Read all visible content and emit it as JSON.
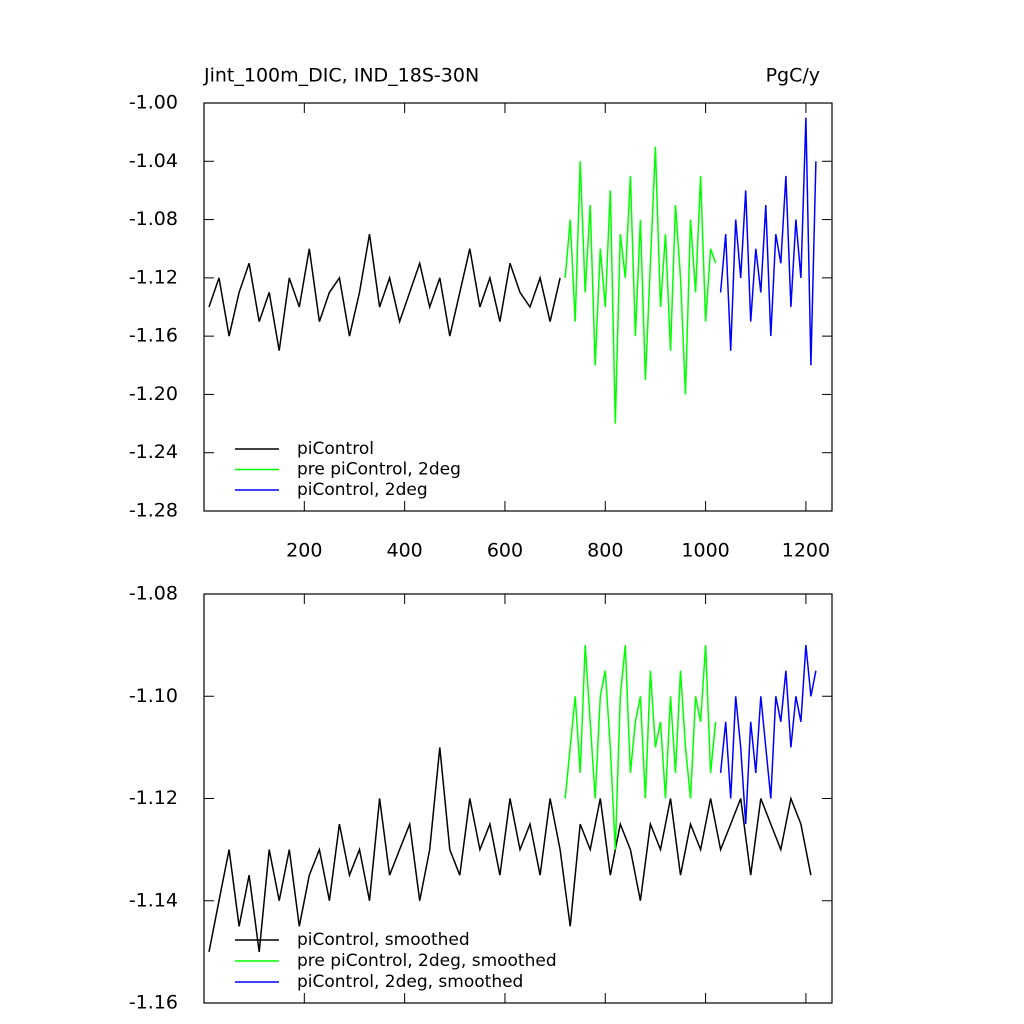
{
  "chart_data": [
    {
      "type": "line",
      "title": "Jint_100m_DIC, IND_18S-30N",
      "units": "PgC/y",
      "xlim": [
        0,
        1252
      ],
      "xticks": [
        200,
        400,
        600,
        800,
        1000,
        1200
      ],
      "ylim": [
        -1.28,
        -1.0
      ],
      "yticks": [
        {
          "value": -1.28,
          "label": "-1.28"
        },
        -1.24,
        {
          "value": -1.2,
          "label": "-1.20"
        },
        -1.16,
        -1.12,
        -1.08,
        -1.04,
        {
          "value": -1.0,
          "label": "-1.00"
        }
      ],
      "series": [
        {
          "name": "piControl",
          "color": "#000000",
          "x": [
            10,
            30,
            50,
            70,
            90,
            110,
            130,
            150,
            170,
            190,
            210,
            230,
            250,
            270,
            290,
            310,
            330,
            350,
            370,
            390,
            410,
            430,
            450,
            470,
            490,
            510,
            530,
            550,
            570,
            590,
            610,
            630,
            650,
            670,
            690,
            710
          ],
          "values": [
            -1.14,
            -1.12,
            -1.16,
            -1.13,
            -1.11,
            -1.15,
            -1.13,
            -1.17,
            -1.12,
            -1.14,
            -1.1,
            -1.15,
            -1.13,
            -1.12,
            -1.16,
            -1.13,
            -1.09,
            -1.14,
            -1.12,
            -1.15,
            -1.13,
            -1.11,
            -1.14,
            -1.12,
            -1.16,
            -1.13,
            -1.1,
            -1.14,
            -1.12,
            -1.15,
            -1.11,
            -1.13,
            -1.14,
            -1.12,
            -1.15,
            -1.12
          ]
        },
        {
          "name": "pre piControl, 2deg",
          "color": "#00ff00",
          "x": [
            720,
            730,
            740,
            750,
            760,
            770,
            780,
            790,
            800,
            810,
            820,
            830,
            840,
            850,
            860,
            870,
            880,
            890,
            900,
            910,
            920,
            930,
            940,
            950,
            960,
            970,
            980,
            990,
            1000,
            1010,
            1020
          ],
          "values": [
            -1.12,
            -1.08,
            -1.15,
            -1.04,
            -1.13,
            -1.07,
            -1.18,
            -1.1,
            -1.14,
            -1.06,
            -1.22,
            -1.09,
            -1.12,
            -1.05,
            -1.16,
            -1.08,
            -1.19,
            -1.11,
            -1.03,
            -1.14,
            -1.09,
            -1.17,
            -1.07,
            -1.12,
            -1.2,
            -1.08,
            -1.13,
            -1.05,
            -1.15,
            -1.1,
            -1.11
          ]
        },
        {
          "name": "piControl, 2deg",
          "color": "#0000ff",
          "x": [
            1030,
            1040,
            1050,
            1060,
            1070,
            1080,
            1090,
            1100,
            1110,
            1120,
            1130,
            1140,
            1150,
            1160,
            1170,
            1180,
            1190,
            1200,
            1210,
            1220
          ],
          "values": [
            -1.13,
            -1.09,
            -1.17,
            -1.08,
            -1.12,
            -1.06,
            -1.15,
            -1.1,
            -1.13,
            -1.07,
            -1.16,
            -1.09,
            -1.11,
            -1.05,
            -1.14,
            -1.08,
            -1.12,
            -1.01,
            -1.18,
            -1.04
          ]
        }
      ]
    },
    {
      "type": "line",
      "xlim": [
        0,
        1252
      ],
      "xticks": [
        200,
        400,
        600,
        800,
        1000,
        1200
      ],
      "ylim": [
        -1.16,
        -1.08
      ],
      "yticks": [
        -1.16,
        -1.14,
        -1.12,
        {
          "value": -1.1,
          "label": "-1.10"
        },
        -1.08
      ],
      "series": [
        {
          "name": "piControl, smoothed",
          "color": "#000000",
          "x": [
            10,
            30,
            50,
            70,
            90,
            110,
            130,
            150,
            170,
            190,
            210,
            230,
            250,
            270,
            290,
            310,
            330,
            350,
            370,
            390,
            410,
            430,
            450,
            470,
            490,
            510,
            530,
            550,
            570,
            590,
            610,
            630,
            650,
            670,
            690,
            710,
            730,
            750,
            770,
            790,
            810,
            830,
            850,
            870,
            890,
            910,
            930,
            950,
            970,
            990,
            1010,
            1030,
            1050,
            1070,
            1090,
            1110,
            1130,
            1150,
            1170,
            1190,
            1210
          ],
          "values": [
            -1.15,
            -1.14,
            -1.13,
            -1.145,
            -1.135,
            -1.15,
            -1.13,
            -1.14,
            -1.13,
            -1.145,
            -1.135,
            -1.13,
            -1.14,
            -1.125,
            -1.135,
            -1.13,
            -1.14,
            -1.12,
            -1.135,
            -1.13,
            -1.125,
            -1.14,
            -1.13,
            -1.11,
            -1.13,
            -1.135,
            -1.12,
            -1.13,
            -1.125,
            -1.135,
            -1.12,
            -1.13,
            -1.125,
            -1.135,
            -1.12,
            -1.13,
            -1.145,
            -1.125,
            -1.13,
            -1.12,
            -1.135,
            -1.125,
            -1.13,
            -1.14,
            -1.125,
            -1.13,
            -1.12,
            -1.135,
            -1.125,
            -1.13,
            -1.12,
            -1.13,
            -1.125,
            -1.12,
            -1.135,
            -1.12,
            -1.125,
            -1.13,
            -1.12,
            -1.125,
            -1.135
          ]
        },
        {
          "name": "pre piControl, 2deg, smoothed",
          "color": "#00ff00",
          "x": [
            720,
            730,
            740,
            750,
            760,
            770,
            780,
            790,
            800,
            810,
            820,
            830,
            840,
            850,
            860,
            870,
            880,
            890,
            900,
            910,
            920,
            930,
            940,
            950,
            960,
            970,
            980,
            990,
            1000,
            1010,
            1020
          ],
          "values": [
            -1.12,
            -1.11,
            -1.1,
            -1.115,
            -1.09,
            -1.105,
            -1.12,
            -1.1,
            -1.095,
            -1.11,
            -1.13,
            -1.1,
            -1.09,
            -1.115,
            -1.105,
            -1.1,
            -1.12,
            -1.095,
            -1.11,
            -1.105,
            -1.12,
            -1.1,
            -1.115,
            -1.095,
            -1.11,
            -1.12,
            -1.1,
            -1.105,
            -1.09,
            -1.115,
            -1.105
          ]
        },
        {
          "name": "piControl, 2deg, smoothed",
          "color": "#0000ff",
          "x": [
            1030,
            1040,
            1050,
            1060,
            1070,
            1080,
            1090,
            1100,
            1110,
            1120,
            1130,
            1140,
            1150,
            1160,
            1170,
            1180,
            1190,
            1200,
            1210,
            1220
          ],
          "values": [
            -1.115,
            -1.105,
            -1.12,
            -1.1,
            -1.11,
            -1.125,
            -1.105,
            -1.115,
            -1.1,
            -1.11,
            -1.12,
            -1.1,
            -1.105,
            -1.095,
            -1.11,
            -1.1,
            -1.105,
            -1.09,
            -1.1,
            -1.095
          ]
        }
      ]
    }
  ]
}
